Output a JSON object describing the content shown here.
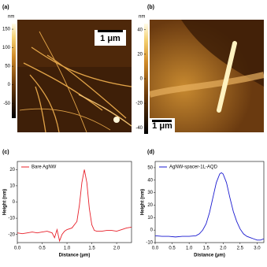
{
  "chart_data": [
    {
      "type": "image",
      "panel_label": "(a)",
      "colorbar_label": "nm",
      "clim": [
        -90,
        165
      ],
      "cticks": [
        -50,
        0,
        50,
        100,
        150
      ],
      "scale_bar_label": "1 μm"
    },
    {
      "type": "image",
      "panel_label": "(b)",
      "colorbar_label": "nm",
      "clim": [
        -45,
        45
      ],
      "cticks": [
        -40,
        -20,
        0,
        20,
        40
      ],
      "scale_bar_label": "1 μm"
    },
    {
      "type": "line",
      "panel_label": "(c)",
      "xlabel": "Distance (μm)",
      "ylabel": "Height (nm)",
      "legend": "upper left",
      "x": [
        0,
        0.1,
        0.2,
        0.3,
        0.4,
        0.5,
        0.6,
        0.7,
        0.75,
        0.8,
        0.85,
        0.9,
        0.95,
        1.0,
        1.1,
        1.2,
        1.25,
        1.3,
        1.35,
        1.4,
        1.45,
        1.5,
        1.55,
        1.6,
        1.7,
        1.8,
        1.9,
        2.0,
        2.1,
        2.2,
        2.3
      ],
      "series": [
        {
          "name": "Bare AgNW",
          "color": "#e8202a",
          "values": [
            -19,
            -19.5,
            -19,
            -18.5,
            -19,
            -18.5,
            -18,
            -19,
            -22,
            -17,
            -24,
            -20,
            -18,
            -17,
            -16,
            -12,
            -2,
            12,
            20,
            12,
            -4,
            -14,
            -17.5,
            -18,
            -18,
            -17.5,
            -17.5,
            -18,
            -17,
            -16,
            -15.5
          ]
        }
      ],
      "xlim": [
        0,
        2.3
      ],
      "ylim": [
        -25,
        25
      ],
      "xticks": [
        {
          "value": 0,
          "label": "0.0"
        },
        {
          "value": 0.5,
          "label": "0.5"
        },
        {
          "value": 1,
          "label": "1.0"
        },
        {
          "value": 1.5,
          "label": "1.5"
        },
        {
          "value": 2,
          "label": "2.0"
        }
      ],
      "yticks": [
        -20,
        -10,
        0,
        10,
        20
      ]
    },
    {
      "type": "line",
      "panel_label": "(d)",
      "xlabel": "Distance (μm)",
      "ylabel": "Height (nm)",
      "legend": "upper left",
      "x": [
        0,
        0.2,
        0.4,
        0.6,
        0.8,
        1.0,
        1.2,
        1.3,
        1.4,
        1.5,
        1.6,
        1.7,
        1.8,
        1.9,
        1.95,
        2.0,
        2.1,
        2.2,
        2.3,
        2.4,
        2.5,
        2.6,
        2.7,
        2.8,
        2.9,
        3.0,
        3.1,
        3.2
      ],
      "series": [
        {
          "name": "AgNW-spacer-1L-AQD",
          "color": "#1a1ad0",
          "values": [
            -4.5,
            -5,
            -5,
            -5.5,
            -5,
            -5,
            -4.5,
            -3,
            0,
            5,
            14,
            26,
            38,
            45,
            46,
            45,
            38,
            26,
            15,
            7,
            1,
            -3,
            -5,
            -6,
            -7,
            -8,
            -8,
            -7
          ]
        }
      ],
      "xlim": [
        0,
        3.2
      ],
      "ylim": [
        -10,
        55
      ],
      "xticks": [
        {
          "value": 0,
          "label": "0.0"
        },
        {
          "value": 0.5,
          "label": "0.5"
        },
        {
          "value": 1,
          "label": "1.0"
        },
        {
          "value": 1.5,
          "label": "1.5"
        },
        {
          "value": 2,
          "label": "2.0"
        },
        {
          "value": 2.5,
          "label": "2.5"
        },
        {
          "value": 3,
          "label": "3.0"
        }
      ],
      "yticks": [
        -10,
        0,
        10,
        20,
        30,
        40,
        50
      ]
    }
  ]
}
